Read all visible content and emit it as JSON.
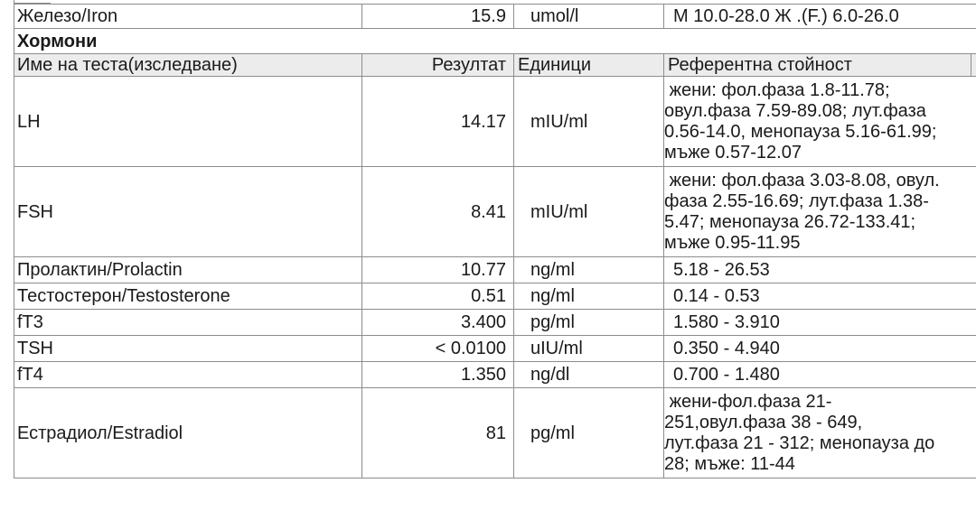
{
  "iron": {
    "name": "Железо/Iron",
    "result": "15.9",
    "unit": "umol/l",
    "ref": "М 10.0-28.0 Ж .(F.) 6.0-26.0"
  },
  "section": {
    "title": "Хормони"
  },
  "columns": {
    "name": "Име на теста(изследване)",
    "result": "Резултат",
    "unit": "Единици",
    "ref": "Референтна стойност"
  },
  "rows": [
    {
      "name": "LH",
      "result": "14.17",
      "unit": "mIU/ml",
      "ref_lines": [
        " жени: фол.фаза 1.8-11.78;",
        "овул.фаза 7.59-89.08; лут.фаза",
        "0.56-14.0, менопауза 5.16-61.99;",
        "мъже 0.57-12.07"
      ]
    },
    {
      "name": "FSH",
      "result": "8.41",
      "unit": "mIU/ml",
      "ref_lines": [
        " жени: фол.фаза 3.03-8.08, овул.",
        "фаза 2.55-16.69; лут.фаза 1.38-",
        "5.47; менопауза 26.72-133.41;",
        "мъже 0.95-11.95"
      ]
    },
    {
      "name": "Пролактин/Prolactin",
      "result": "10.77",
      "unit": "ng/ml",
      "ref": "5.18 - 26.53"
    },
    {
      "name": "Тестостерон/Testosterone",
      "result": "0.51",
      "unit": "ng/ml",
      "ref": "0.14 - 0.53"
    },
    {
      "name": "fT3",
      "result": "3.400",
      "unit": "pg/ml",
      "ref": "1.580 - 3.910"
    },
    {
      "name": "TSH",
      "result": "< 0.0100",
      "unit": "uIU/ml",
      "ref": "0.350 - 4.940"
    },
    {
      "name": "fT4",
      "result": "1.350",
      "unit": "ng/dl",
      "ref": "0.700 - 1.480"
    },
    {
      "name": "Естрадиол/Estradiol",
      "result": "81",
      "unit": "pg/ml",
      "ref_lines": [
        " жени-фол.фаза 21-",
        "251,овул.фаза 38 - 649,",
        "лут.фаза 21 - 312; менопауза до",
        "28; мъже: 11-44"
      ]
    }
  ]
}
